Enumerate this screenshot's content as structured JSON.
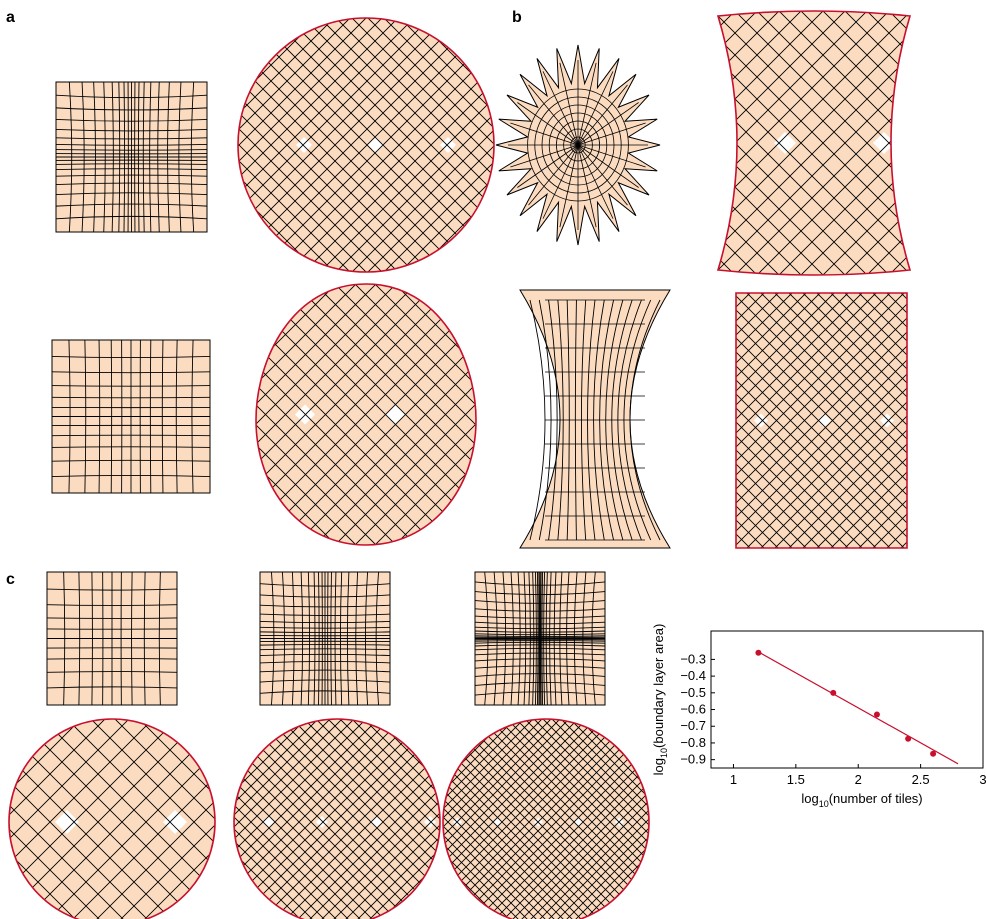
{
  "panel_labels": [
    "a",
    "b",
    "c"
  ],
  "chart_data": {
    "type": "scatter",
    "x": [
      1.2,
      1.8,
      2.15,
      2.4,
      2.6
    ],
    "series": [
      {
        "color": "#c8102e",
        "values": [
          -0.26,
          -0.5,
          -0.63,
          -0.775,
          -0.865
        ]
      }
    ],
    "fit": {
      "x": [
        1.2,
        2.8
      ],
      "y": [
        -0.255,
        -0.925
      ],
      "color": "#c8102e"
    },
    "xlabel": {
      "main": "log",
      "sub": "10",
      "rest": "(number of tiles)"
    },
    "ylabel": {
      "main": "log",
      "sub": "10",
      "rest": "(boundary layer area)"
    },
    "xlim": [
      0.82,
      3
    ],
    "ylim": [
      -0.95,
      -0.13
    ],
    "xticks": [
      1,
      1.5,
      2,
      2.5,
      3
    ],
    "yticks": [
      {
        "value": -0.3,
        "label": "−0.3"
      },
      {
        "value": -0.4,
        "label": "−0.4"
      },
      {
        "value": -0.5,
        "label": "−0.5"
      },
      {
        "value": -0.6,
        "label": "−0.6"
      },
      {
        "value": -0.7,
        "label": "−0.7"
      },
      {
        "value": -0.8,
        "label": "−0.8"
      },
      {
        "value": -0.9,
        "label": "−0.9"
      }
    ]
  }
}
